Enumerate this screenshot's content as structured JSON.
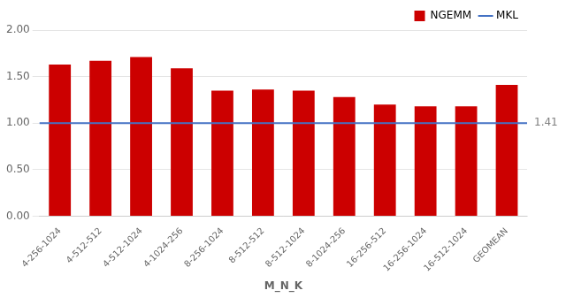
{
  "chart_data": {
    "type": "bar",
    "categories": [
      "4-256-1024",
      "4-512-512",
      "4-512-1024",
      "4-1024-256",
      "8-256-1024",
      "8-512-512",
      "8-512-1024",
      "8-1024-256",
      "16-256-512",
      "16-256-1024",
      "16-512-1024",
      "GEOMEAN"
    ],
    "series": [
      {
        "name": "NGEMM",
        "type": "bar",
        "color": "#CC0000",
        "values": [
          1.63,
          1.67,
          1.71,
          1.59,
          1.35,
          1.36,
          1.35,
          1.28,
          1.2,
          1.18,
          1.18,
          1.41
        ]
      }
    ],
    "lines": [
      {
        "name": "MKL",
        "value": 1.0,
        "color": "#4472C4"
      }
    ],
    "annotations": [
      {
        "text": "1.41",
        "y": 1.0,
        "color": "#7F7F7F"
      }
    ],
    "xlabel": "M_N_K",
    "ylim": [
      0.0,
      2.0
    ],
    "yticks": [
      {
        "value": 0.0,
        "label": "0.00"
      },
      {
        "value": 0.5,
        "label": "0.50"
      },
      {
        "value": 1.0,
        "label": "1.00"
      },
      {
        "value": 1.5,
        "label": "1.50"
      },
      {
        "value": 2.0,
        "label": "2.00"
      }
    ],
    "grid": true,
    "legend": "upper right"
  }
}
